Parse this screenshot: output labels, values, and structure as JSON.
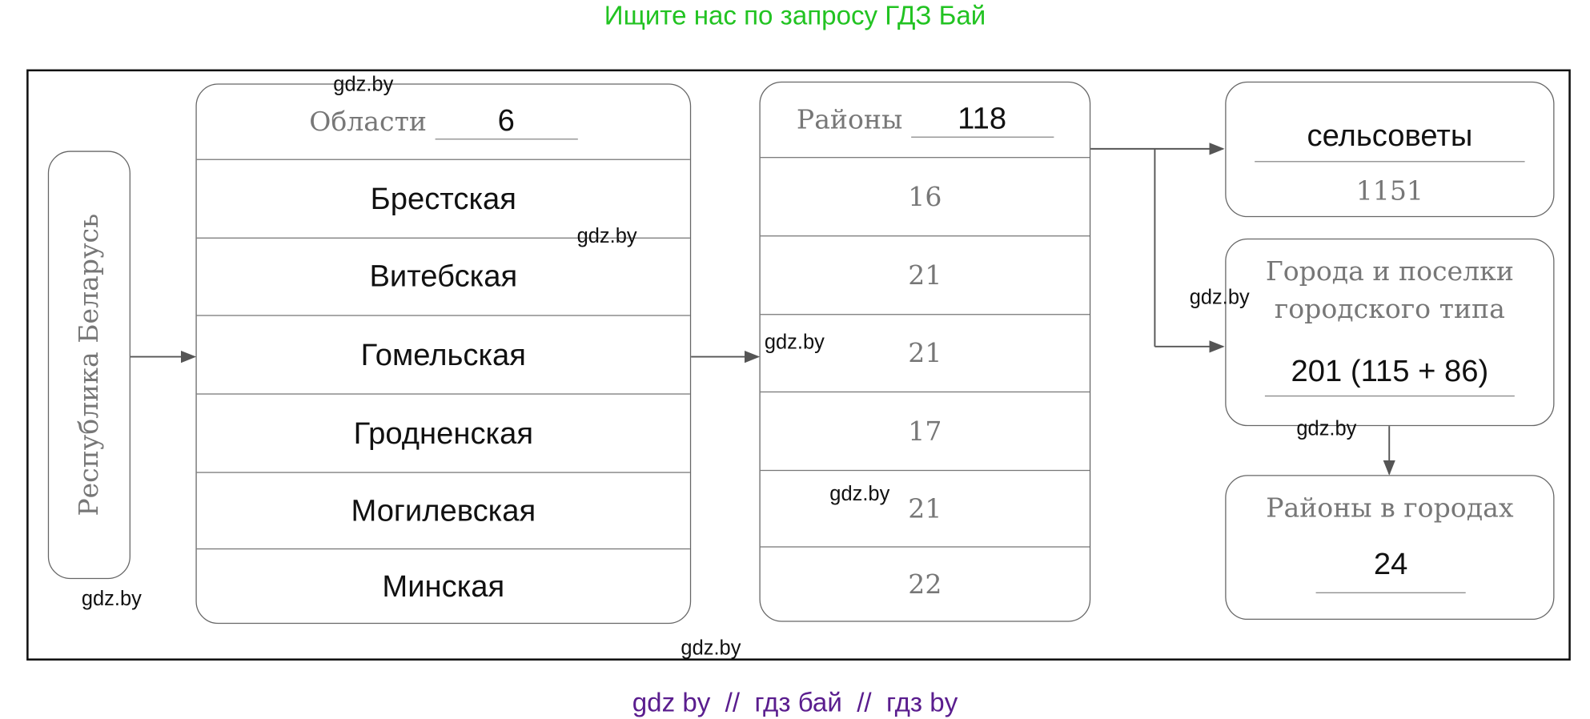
{
  "header": {
    "title": "Ищите нас по запросу ГДЗ Бай"
  },
  "footer": {
    "text": "gdz by  //  гдз бай  //  гдз by"
  },
  "colors": {
    "title": "#22c322",
    "footer": "#5a1d8e"
  },
  "diagram": {
    "root": "Республика Беларусь",
    "regions": {
      "label": "Области",
      "count": "6",
      "items": [
        "Брестская",
        "Витебская",
        "Гомельская",
        "Гродненская",
        "Могилевская",
        "Минская"
      ]
    },
    "districts": {
      "label": "Районы",
      "count": "118",
      "items": [
        "16",
        "21",
        "21",
        "17",
        "21",
        "22"
      ]
    },
    "selsovety": {
      "label": "сельсоветы",
      "value": "1151"
    },
    "cities": {
      "label_line1": "Города и поселки",
      "label_line2": "городского типа",
      "value": "201 (115 + 86)"
    },
    "city_districts": {
      "label": "Районы в городах",
      "value": "24"
    }
  },
  "watermarks": [
    "gdz.by",
    "gdz.by",
    "gdz.by",
    "gdz.by",
    "gdz.by",
    "gdz.by",
    "gdz.by",
    "gdz.by"
  ]
}
